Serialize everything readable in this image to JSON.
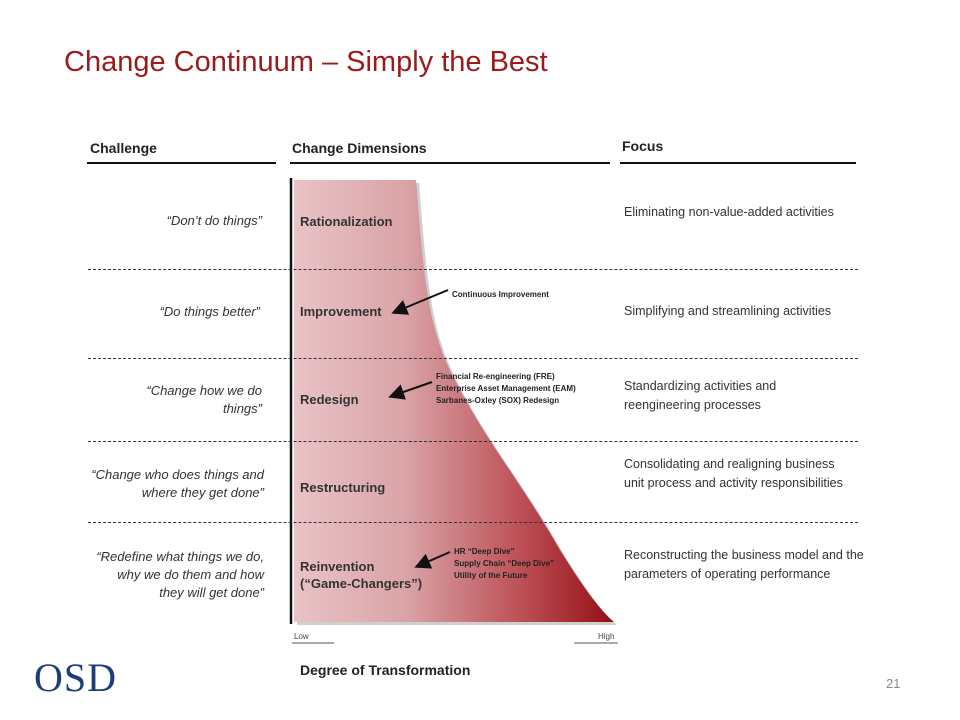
{
  "title_main": "Change Continuum",
  "title_sep": " – ",
  "title_sub": "Simply the Best",
  "headers": {
    "challenge": "Challenge",
    "dimensions": "Change Dimensions",
    "focus": "Focus"
  },
  "rows": [
    {
      "challenge": "“Don’t do things”",
      "dimension": "Rationalization",
      "focus": "Eliminating non-value-added activities"
    },
    {
      "challenge": "“Do things better”",
      "dimension": "Improvement",
      "focus": "Simplifying and streamlining activities"
    },
    {
      "challenge": "“Change how we do things”",
      "dimension": "Redesign",
      "focus": "Standardizing activities and reengineering processes"
    },
    {
      "challenge": "“Change who does things and where they get done”",
      "dimension": "Restructuring",
      "focus": "Consolidating and realigning business unit process and activity responsibilities"
    },
    {
      "challenge": "“Redefine what things we do, why we do them and how they will get done”",
      "dimension_line1": "Reinvention",
      "dimension_line2": "(“Game-Changers”)",
      "focus": "Reconstructing the business model and the parameters of operating performance"
    }
  ],
  "notes": {
    "n1": "Continuous Improvement",
    "n2": [
      "Financial Re-engineering (FRE)",
      "Enterprise Asset Management (EAM)",
      "Sarbanes-Oxley (SOX) Redesign"
    ],
    "n3": [
      "HR “Deep Dive”",
      "Supply Chain “Deep Dive”",
      "Utility of the Future"
    ]
  },
  "axis": {
    "low": "Low",
    "high": "High",
    "label": "Degree of Transformation"
  },
  "logo": "OSD",
  "page_number": "21",
  "colors": {
    "title": "#9b1b1b",
    "shape_light": "#e5b8bb",
    "shape_dark": "#9a1218",
    "logo": "#1f3d7a"
  }
}
